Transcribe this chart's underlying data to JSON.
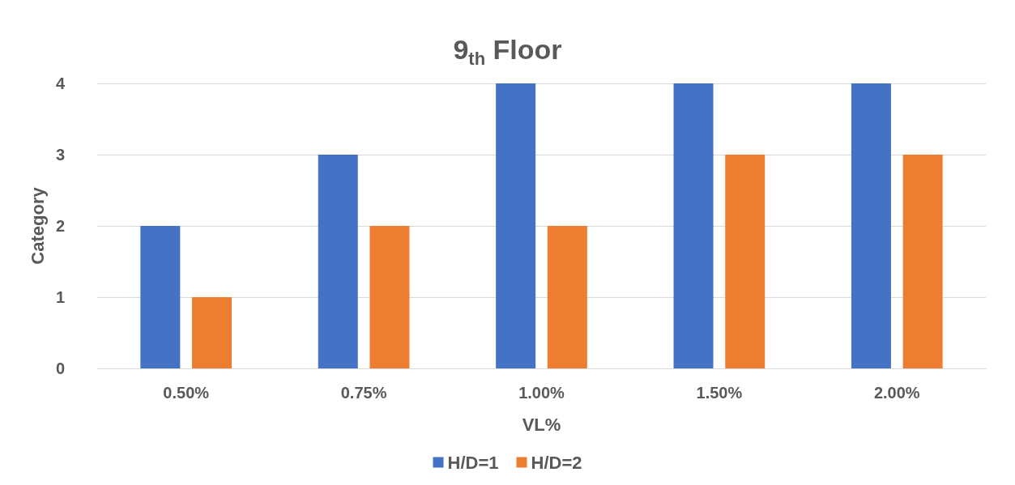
{
  "chart_data": {
    "type": "bar",
    "title": "9$_{th}$ Floor",
    "xlabel": "VL%",
    "ylabel": "Category",
    "categories": [
      "0.50%",
      "0.75%",
      "1.00%",
      "1.50%",
      "2.00%"
    ],
    "series": [
      {
        "name": "H/D=1",
        "color": "#4472c4",
        "values": [
          2,
          3,
          4,
          4,
          4
        ]
      },
      {
        "name": "H/D=2",
        "color": "#ed7d31",
        "values": [
          1,
          2,
          2,
          3,
          3
        ]
      }
    ],
    "ylim": [
      0,
      4
    ],
    "yticks": [
      0,
      1,
      2,
      3,
      4
    ],
    "grid": "y",
    "legend": "bottom"
  }
}
